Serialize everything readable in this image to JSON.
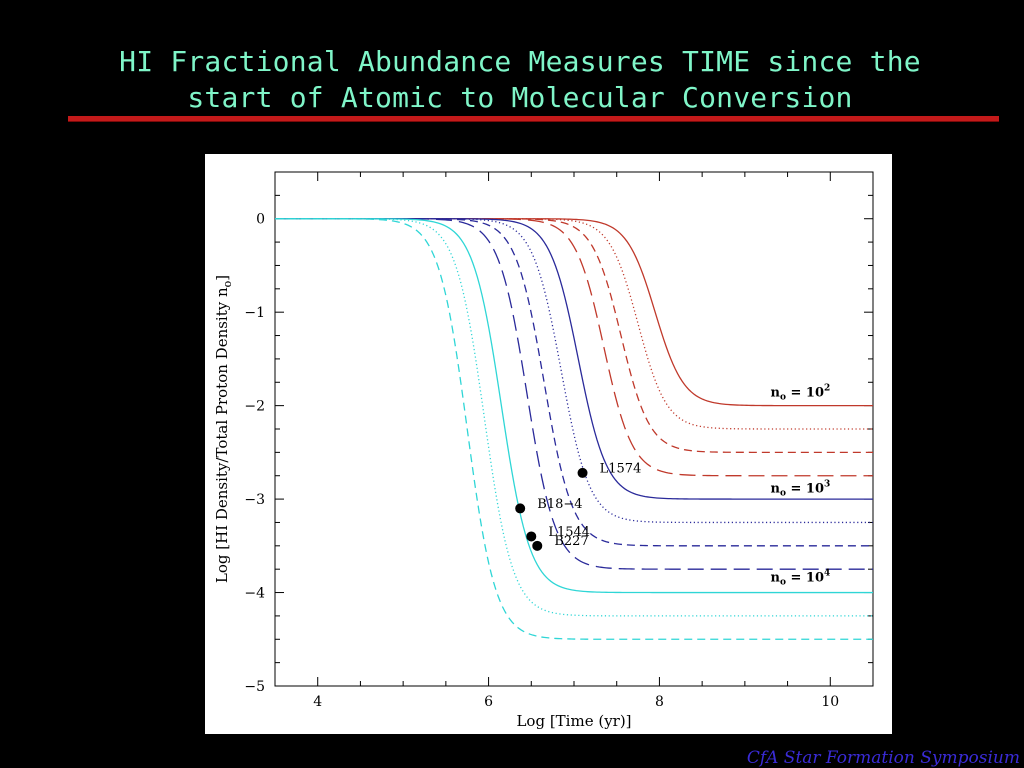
{
  "slide": {
    "title_line1": "HI Fractional Abundance Measures TIME since the",
    "title_line2": "start of Atomic to Molecular Conversion",
    "footer": "CfA Star Formation Symposium"
  },
  "colors": {
    "title": "#7ff5c8",
    "rule": "#c41a1a",
    "footer": "#3a2bd6",
    "n2": "#c0392b",
    "n3": "#2a2a9a",
    "n4": "#2fd6d6"
  },
  "chart_data": {
    "type": "line",
    "xlabel": "Log [Time (yr)]",
    "ylabel": "Log [HI Density/Total Proton Density n",
    "ylabel_sub": "o",
    "ylabel_end": "]",
    "xlim": [
      3.5,
      10.5
    ],
    "ylim": [
      -5,
      0.5
    ],
    "x_ticks": [
      "4",
      "6",
      "8",
      "10"
    ],
    "y_ticks": [
      "0",
      "−1",
      "−2",
      "−3",
      "−4",
      "−5"
    ],
    "series": [
      {
        "group": "n2",
        "style": "solid",
        "x_half": 7.95,
        "plateau": -2.0
      },
      {
        "group": "n2",
        "style": "dotted",
        "x_half": 7.75,
        "plateau": -2.25
      },
      {
        "group": "n2",
        "style": "dashed",
        "x_half": 7.55,
        "plateau": -2.5
      },
      {
        "group": "n2",
        "style": "longdash",
        "x_half": 7.35,
        "plateau": -2.75
      },
      {
        "group": "n3",
        "style": "solid",
        "x_half": 7.05,
        "plateau": -3.0
      },
      {
        "group": "n3",
        "style": "dotted",
        "x_half": 6.85,
        "plateau": -3.25
      },
      {
        "group": "n3",
        "style": "dashed",
        "x_half": 6.65,
        "plateau": -3.5
      },
      {
        "group": "n3",
        "style": "longdash",
        "x_half": 6.45,
        "plateau": -3.75
      },
      {
        "group": "n4",
        "style": "solid",
        "x_half": 6.15,
        "plateau": -4.0
      },
      {
        "group": "n4",
        "style": "dotted",
        "x_half": 5.95,
        "plateau": -4.25
      },
      {
        "group": "n4",
        "style": "dashed",
        "x_half": 5.75,
        "plateau": -4.5
      }
    ],
    "curve_labels": [
      {
        "group": "n2",
        "text": "n",
        "sub": "o",
        "rest": " = 10",
        "sup": "2",
        "x": 9.3,
        "y": -1.9
      },
      {
        "group": "n3",
        "text": "n",
        "sub": "o",
        "rest": " = 10",
        "sup": "3",
        "x": 9.3,
        "y": -2.93
      },
      {
        "group": "n4",
        "text": "n",
        "sub": "o",
        "rest": " = 10",
        "sup": "4",
        "x": 9.3,
        "y": -3.88
      }
    ],
    "points": [
      {
        "name": "L1574",
        "x": 7.1,
        "y": -2.72,
        "label_dx": 0.2,
        "label_dy": 0.05
      },
      {
        "name": "B18−4",
        "x": 6.37,
        "y": -3.1,
        "label_dx": 0.2,
        "label_dy": 0.05
      },
      {
        "name": "L1544",
        "x": 6.5,
        "y": -3.4,
        "label_dx": 0.2,
        "label_dy": 0.05
      },
      {
        "name": "B227",
        "x": 6.57,
        "y": -3.5,
        "label_dx": 0.2,
        "label_dy": 0.05
      }
    ]
  }
}
